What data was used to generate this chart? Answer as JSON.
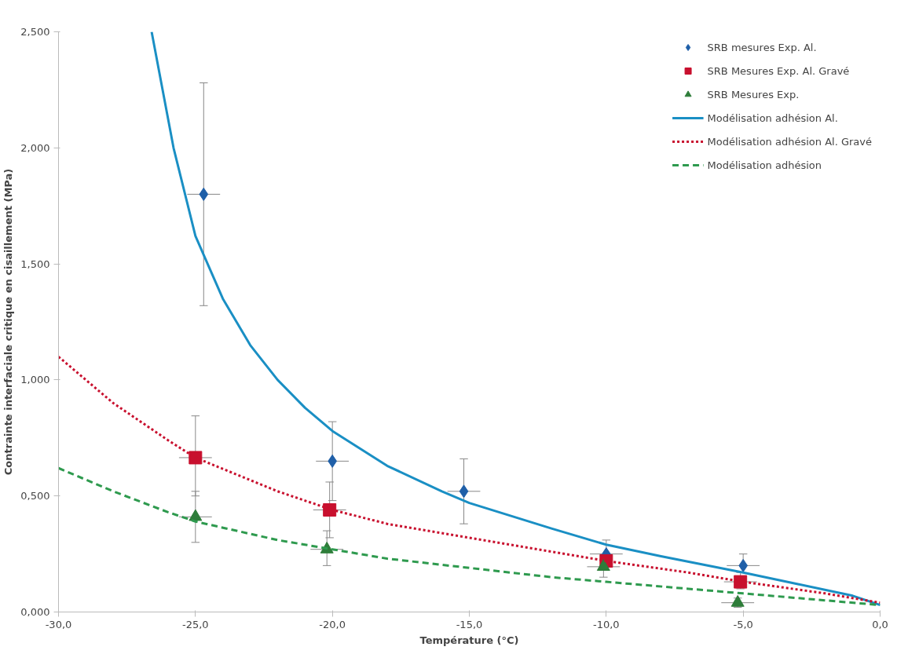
{
  "chart_data": {
    "type": "scatter",
    "xlabel": "Température (°C)",
    "ylabel": "Contrainte interfaciale critique en cisaillement (MPa)",
    "xlim": [
      -30,
      0
    ],
    "ylim": [
      0,
      2.5
    ],
    "xticks": [
      {
        "value": -30,
        "label": "-30,0"
      },
      {
        "value": -25,
        "label": "-25,0"
      },
      {
        "value": -20,
        "label": "-20,0"
      },
      {
        "value": -15,
        "label": "-15,0"
      },
      {
        "value": -10,
        "label": "-10,0"
      },
      {
        "value": -5,
        "label": "-5,0"
      },
      {
        "value": 0,
        "label": "0,0"
      }
    ],
    "yticks": [
      {
        "value": 0,
        "label": "0,000"
      },
      {
        "value": 0.5,
        "label": "0,500"
      },
      {
        "value": 1,
        "label": "1,000"
      },
      {
        "value": 1.5,
        "label": "1,500"
      },
      {
        "value": 2,
        "label": "2,000"
      },
      {
        "value": 2.5,
        "label": "2,500"
      }
    ],
    "grid": false,
    "legend": "top right",
    "series": [
      {
        "name": "SRB mesures Exp. Al.",
        "marker": "diamond",
        "color": "#1f5fa8",
        "x": [
          -24.7,
          -20,
          -15.2,
          -10,
          -5
        ],
        "values": [
          1.8,
          0.65,
          0.52,
          0.25,
          0.2
        ],
        "errors": [
          [
            1.32,
            2.28
          ],
          [
            0.48,
            0.82
          ],
          [
            0.38,
            0.66
          ],
          [
            0.2,
            0.31
          ],
          [
            0.2,
            0.25
          ]
        ],
        "xerrors": [
          0.6,
          0.6,
          0.6,
          0.6,
          0.6
        ]
      },
      {
        "name": "SRB Mesures Exp. Al. Gravé",
        "marker": "square",
        "color": "#c8102e",
        "x": [
          -25,
          -20.1,
          -10,
          -5.1
        ],
        "values": [
          0.665,
          0.44,
          0.22,
          0.13
        ],
        "errors": [
          [
            0.5,
            0.845
          ],
          [
            0.32,
            0.56
          ],
          null,
          [
            0.1,
            0.17
          ]
        ],
        "xerrors": [
          0.6,
          0.6,
          null,
          0.6
        ]
      },
      {
        "name": "SRB Mesures Exp.",
        "marker": "triangle",
        "color": "#2e7d3a",
        "x": [
          -25,
          -20.2,
          -10.1,
          -5.2
        ],
        "values": [
          0.41,
          0.27,
          0.195,
          0.04
        ],
        "errors": [
          [
            0.3,
            0.52
          ],
          [
            0.2,
            0.35
          ],
          [
            0.15,
            0.25
          ],
          [
            0.02,
            0.06
          ]
        ],
        "xerrors": [
          0.6,
          0.6,
          0.6,
          0.6
        ]
      },
      {
        "name": "Modélisation adhésion Al.",
        "type": "line",
        "line_style": "solid",
        "marker": "none",
        "color": "#1a8fc4",
        "x": [
          -26.6,
          -25.8,
          -25,
          -24,
          -23,
          -22,
          -21,
          -20,
          -18,
          -16,
          -15,
          -12,
          -10,
          -8,
          -5,
          -3,
          -1,
          0
        ],
        "values": [
          2.5,
          2.0,
          1.62,
          1.35,
          1.15,
          1.0,
          0.88,
          0.78,
          0.63,
          0.52,
          0.47,
          0.36,
          0.29,
          0.24,
          0.17,
          0.12,
          0.07,
          0.03
        ]
      },
      {
        "name": "Modélisation adhésion Al. Gravé",
        "type": "line",
        "line_style": "dotted",
        "marker": "none",
        "color": "#c8102e",
        "x": [
          -30,
          -28,
          -26,
          -25,
          -22,
          -20,
          -18,
          -15,
          -12,
          -10,
          -7,
          -5,
          -2,
          0
        ],
        "values": [
          1.1,
          0.9,
          0.74,
          0.665,
          0.52,
          0.44,
          0.38,
          0.32,
          0.26,
          0.22,
          0.17,
          0.13,
          0.08,
          0.04
        ]
      },
      {
        "name": "Modélisation adhésion",
        "type": "line",
        "line_style": "dashed",
        "marker": "none",
        "color": "#2e9a4e",
        "x": [
          -30,
          -28,
          -26,
          -25,
          -22,
          -20,
          -18,
          -15,
          -12,
          -10,
          -7,
          -5,
          -2,
          0
        ],
        "values": [
          0.62,
          0.52,
          0.43,
          0.39,
          0.31,
          0.27,
          0.23,
          0.19,
          0.15,
          0.13,
          0.1,
          0.08,
          0.05,
          0.03
        ]
      }
    ]
  }
}
